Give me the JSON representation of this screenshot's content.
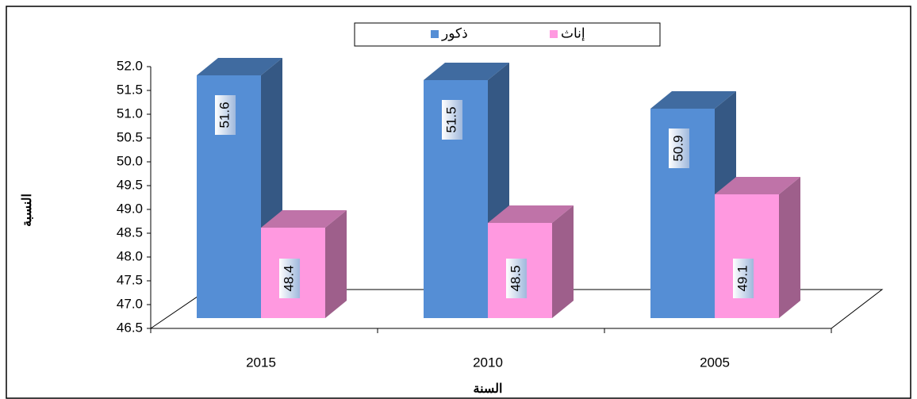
{
  "chart_data": {
    "type": "bar3d",
    "x_label": "السنة",
    "y_label": "النسبة",
    "categories": [
      "2015",
      "2010",
      "2005"
    ],
    "series": [
      {
        "name": "ذكور",
        "color": "#558ed5",
        "values": [
          51.6,
          51.5,
          50.9
        ]
      },
      {
        "name": "إناث",
        "color": "#ff99e0",
        "values": [
          48.4,
          48.5,
          49.1
        ]
      }
    ],
    "ylim": [
      46.5,
      52
    ],
    "yticks": [
      46.5,
      {
        "value": 47,
        "label": "47.0"
      },
      47.5,
      {
        "value": 48,
        "label": "48.0"
      },
      48.5,
      {
        "value": 49,
        "label": "49.0"
      },
      49.5,
      {
        "value": 50,
        "label": "50.0"
      },
      50.5,
      {
        "value": 51,
        "label": "51.0"
      },
      51.5,
      {
        "value": 52,
        "label": "52.0"
      }
    ],
    "legend": "top"
  }
}
